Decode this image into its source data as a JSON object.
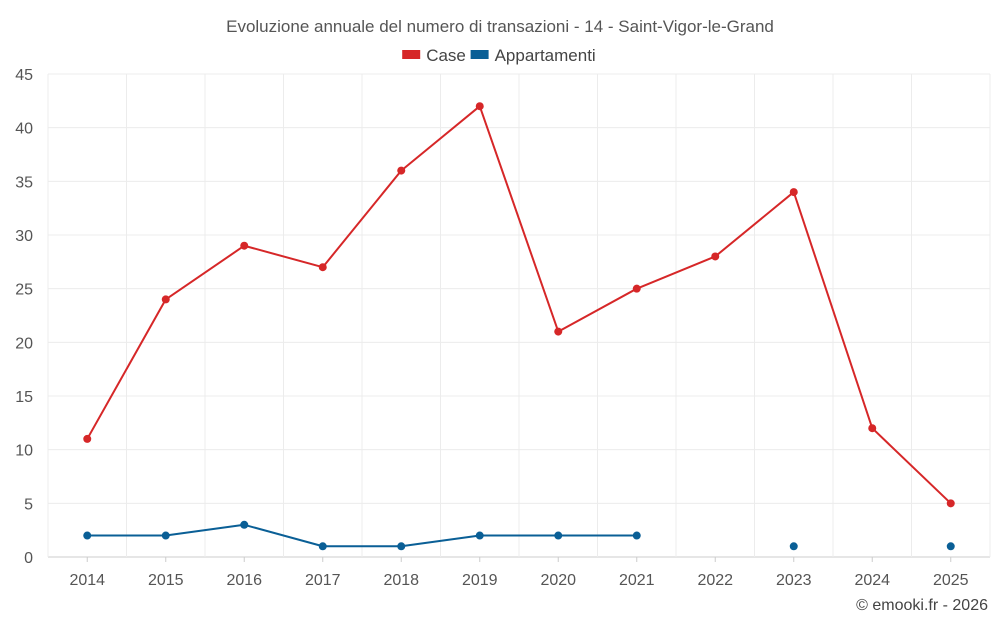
{
  "chart_data": {
    "type": "line",
    "title": "Evoluzione annuale del numero di transazioni - 14 - Saint-Vigor-le-Grand",
    "categories": [
      "2014",
      "2015",
      "2016",
      "2017",
      "2018",
      "2019",
      "2020",
      "2021",
      "2022",
      "2023",
      "2024",
      "2025"
    ],
    "ylim": [
      0,
      45
    ],
    "yticks": [
      0,
      5,
      10,
      15,
      20,
      25,
      30,
      35,
      40,
      45
    ],
    "grid": true,
    "legend_position": "top-center",
    "series": [
      {
        "name": "Case",
        "color": "#d62728",
        "values": [
          11,
          24,
          29,
          27,
          36,
          42,
          21,
          25,
          28,
          34,
          12,
          5
        ]
      },
      {
        "name": "Appartamenti",
        "color": "#0a5f96",
        "values": [
          2,
          2,
          3,
          1,
          1,
          2,
          2,
          2,
          null,
          1,
          null,
          1
        ]
      }
    ],
    "credit": "© emooki.fr - 2026"
  }
}
